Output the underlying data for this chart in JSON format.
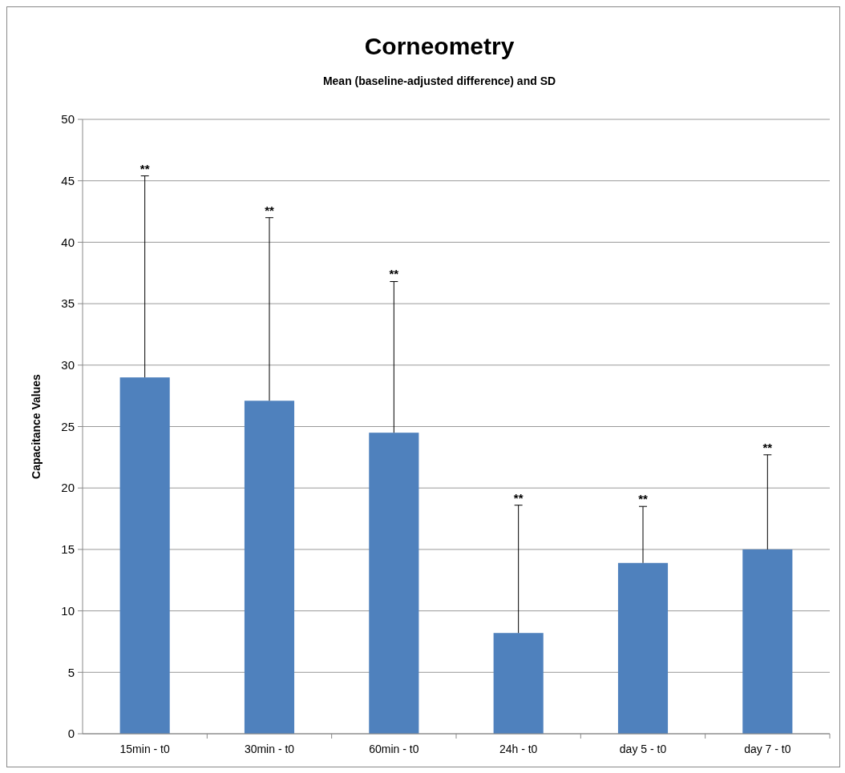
{
  "chart_data": {
    "type": "bar",
    "title": "Corneometry",
    "subtitle": "Mean (baseline-adjusted difference) and SD",
    "ylabel": "Capacitance  Values",
    "categories": [
      "15min - t0",
      "30min - t0",
      "60min - t0",
      "24h - t0",
      "day 5 - t0",
      "day 7 - t0"
    ],
    "values": [
      29,
      27.1,
      24.5,
      8.2,
      13.9,
      15
    ],
    "errors": [
      [
        29,
        45.4
      ],
      [
        27.1,
        42
      ],
      [
        24.5,
        36.8
      ],
      [
        8.2,
        18.6
      ],
      [
        13.9,
        18.5
      ],
      [
        15,
        22.7
      ]
    ],
    "color": "#4f81bd",
    "ylim": [
      0,
      50
    ],
    "yticks": [
      0,
      5,
      10,
      15,
      20,
      25,
      30,
      35,
      40,
      45,
      50
    ],
    "grid": "y",
    "annotations": [
      {
        "text": "**",
        "x": "15min - t0",
        "y": 45.4
      },
      {
        "text": "**",
        "x": "30min - t0",
        "y": 42
      },
      {
        "text": "**",
        "x": "60min - t0",
        "y": 36.8
      },
      {
        "text": "**",
        "x": "24h - t0",
        "y": 18.6
      },
      {
        "text": "**",
        "x": "day 5 - t0",
        "y": 18.5
      },
      {
        "text": "**",
        "x": "day 7 - t0",
        "y": 22.7
      }
    ]
  }
}
